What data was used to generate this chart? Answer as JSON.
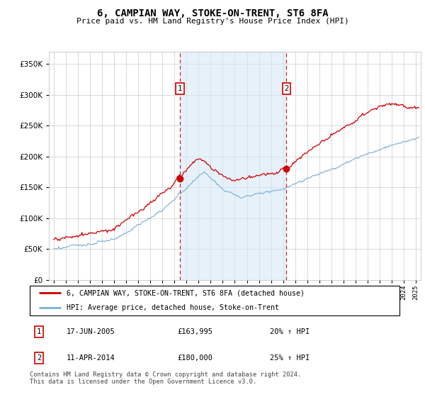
{
  "title": "6, CAMPIAN WAY, STOKE-ON-TRENT, ST6 8FA",
  "subtitle": "Price paid vs. HM Land Registry's House Price Index (HPI)",
  "hpi_label": "HPI: Average price, detached house, Stoke-on-Trent",
  "price_label": "6, CAMPIAN WAY, STOKE-ON-TRENT, ST6 8FA (detached house)",
  "red_color": "#cc0000",
  "blue_color": "#7bafd4",
  "blue_fill_color": "#ddeeff",
  "annotation1": {
    "num": "1",
    "date": "17-JUN-2005",
    "price": "£163,995",
    "hpi": "20% ↑ HPI",
    "x_year": 2005.46,
    "y_val": 163995
  },
  "annotation2": {
    "num": "2",
    "date": "11-APR-2014",
    "price": "£180,000",
    "hpi": "25% ↑ HPI",
    "x_year": 2014.28,
    "y_val": 180000
  },
  "footer": "Contains HM Land Registry data © Crown copyright and database right 2024.\nThis data is licensed under the Open Government Licence v3.0.",
  "ylim": [
    0,
    370000
  ],
  "yticks": [
    0,
    50000,
    100000,
    150000,
    200000,
    250000,
    300000,
    350000
  ],
  "xlim_left": 1994.6,
  "xlim_right": 2025.4
}
